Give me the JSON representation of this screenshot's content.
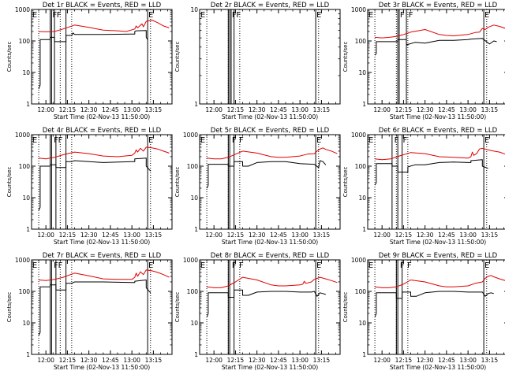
{
  "colors": {
    "events": "#000000",
    "lld": "#e00000",
    "axes": "#000000",
    "background": "#ffffff"
  },
  "ylabel": "Counts/sec",
  "xlabel": "Start Time (02-Nov-13 11:50:00)",
  "x_tick_labels": [
    "12:00",
    "12:15",
    "12:30",
    "12:45",
    "13:00",
    "13:15"
  ],
  "y_tick_labels": [
    "1",
    "10",
    "100",
    "1000"
  ],
  "chart_data": [
    {
      "type": "line",
      "title": "Det 1r  BLACK = Events, RED = LLD",
      "x_unit": "minutes after 11:50",
      "xlim": [
        0,
        98
      ],
      "ylim": [
        1,
        1000
      ],
      "y_scale": "log",
      "dotted_lines": [
        5,
        20,
        28,
        83
      ],
      "solid_lines": [
        13,
        14,
        16,
        24,
        81
      ],
      "markers": [
        {
          "x": 0.5,
          "label": "E"
        },
        {
          "x": 14.5,
          "label": "F"
        },
        {
          "x": 17.5,
          "label": "F"
        },
        {
          "x": 81.5,
          "label": "E"
        }
      ],
      "series": [
        {
          "role": "events",
          "x": [
            5,
            6,
            6.01,
            13,
            13.01,
            16,
            16.01,
            24,
            24.01,
            28,
            29,
            30,
            50,
            70,
            72,
            72.01,
            73,
            80,
            80.01,
            81
          ],
          "y": [
            3,
            4,
            110,
            110,
            130,
            130,
            95,
            95,
            150,
            150,
            180,
            160,
            160,
            165,
            165,
            200,
            210,
            215,
            130,
            110
          ]
        },
        {
          "role": "lld",
          "x": [
            5,
            10,
            16,
            22,
            30,
            40,
            50,
            60,
            66,
            72,
            73,
            74,
            77,
            78,
            80,
            84,
            88,
            92,
            96
          ],
          "y": [
            200,
            195,
            200,
            240,
            320,
            270,
            220,
            210,
            200,
            240,
            300,
            260,
            350,
            280,
            420,
            460,
            380,
            300,
            260
          ]
        }
      ]
    },
    {
      "type": "line",
      "title": "Det 2r  BLACK = Events, RED = LLD",
      "x_unit": "minutes after 11:50",
      "xlim": [
        0,
        98
      ],
      "ylim": [
        1,
        10
      ],
      "y_scale": "log",
      "dotted_lines": [
        5,
        20,
        28,
        83
      ],
      "solid_lines": [
        20,
        21,
        22,
        24,
        81
      ],
      "markers": [
        {
          "x": 0.5,
          "label": "E"
        },
        {
          "x": 22.5,
          "label": "F"
        },
        {
          "x": 25.5,
          "label": "F"
        },
        {
          "x": 81.5,
          "label": "E"
        }
      ],
      "series": [
        {
          "role": "events",
          "x": [],
          "y": []
        },
        {
          "role": "lld",
          "x": [],
          "y": []
        }
      ]
    },
    {
      "type": "line",
      "title": "Det 3r  BLACK = Events, RED = LLD",
      "x_unit": "minutes after 11:50",
      "xlim": [
        0,
        98
      ],
      "ylim": [
        1,
        1000
      ],
      "y_scale": "log",
      "dotted_lines": [
        5,
        20,
        28,
        83
      ],
      "solid_lines": [
        21,
        22,
        27,
        81
      ],
      "markers": [
        {
          "x": 0.5,
          "label": "E"
        },
        {
          "x": 22.5,
          "label": "F"
        },
        {
          "x": 28.5,
          "label": "F"
        },
        {
          "x": 81.5,
          "label": "E"
        }
      ],
      "series": [
        {
          "role": "events",
          "x": [
            5,
            6,
            6.01,
            21,
            21.01,
            27,
            27.01,
            33,
            40,
            50,
            60,
            70,
            72,
            80,
            85,
            88,
            90
          ],
          "y": [
            35,
            40,
            95,
            95,
            110,
            110,
            75,
            90,
            85,
            105,
            105,
            110,
            115,
            120,
            80,
            100,
            95
          ]
        },
        {
          "role": "lld",
          "x": [
            5,
            10,
            15,
            20,
            25,
            30,
            40,
            50,
            55,
            60,
            70,
            75,
            78,
            80,
            82,
            84,
            88,
            92,
            96
          ],
          "y": [
            130,
            125,
            130,
            140,
            160,
            190,
            230,
            160,
            150,
            145,
            160,
            185,
            190,
            250,
            230,
            270,
            320,
            290,
            250
          ]
        }
      ]
    },
    {
      "type": "line",
      "title": "Det 4r  BLACK = Events, RED = LLD",
      "x_unit": "minutes after 11:50",
      "xlim": [
        0,
        98
      ],
      "ylim": [
        1,
        1000
      ],
      "y_scale": "log",
      "dotted_lines": [
        5,
        20,
        28,
        83
      ],
      "solid_lines": [
        13,
        14,
        17,
        24,
        81
      ],
      "markers": [
        {
          "x": 0.5,
          "label": "E"
        },
        {
          "x": 15.5,
          "label": "F"
        },
        {
          "x": 18.5,
          "label": "F"
        },
        {
          "x": 81.5,
          "label": "E"
        }
      ],
      "series": [
        {
          "role": "events",
          "x": [
            5,
            6,
            6.01,
            13,
            13.01,
            17,
            17.01,
            24,
            24.01,
            28,
            30,
            50,
            70,
            72,
            72.01,
            80,
            80.01,
            83
          ],
          "y": [
            4,
            5,
            100,
            100,
            110,
            110,
            90,
            90,
            140,
            140,
            150,
            130,
            140,
            140,
            170,
            180,
            100,
            70
          ]
        },
        {
          "role": "lld",
          "x": [
            5,
            10,
            16,
            22,
            30,
            40,
            50,
            60,
            70,
            72,
            73,
            74,
            76,
            78,
            80,
            84,
            88,
            92,
            96
          ],
          "y": [
            180,
            170,
            190,
            230,
            280,
            250,
            210,
            200,
            220,
            260,
            330,
            280,
            370,
            300,
            400,
            380,
            350,
            300,
            260
          ]
        }
      ]
    },
    {
      "type": "line",
      "title": "Det 5r  BLACK = Events, RED = LLD",
      "x_unit": "minutes after 11:50",
      "xlim": [
        0,
        98
      ],
      "ylim": [
        1,
        1000
      ],
      "y_scale": "log",
      "dotted_lines": [
        5,
        20,
        28,
        83
      ],
      "solid_lines": [
        20,
        21,
        24,
        81
      ],
      "markers": [
        {
          "x": 0.5,
          "label": "E"
        },
        {
          "x": 22.5,
          "label": "F"
        },
        {
          "x": 27.5,
          "label": "F"
        },
        {
          "x": 81.5,
          "label": "E"
        }
      ],
      "series": [
        {
          "role": "events",
          "x": [
            5,
            6,
            6.01,
            20,
            20.01,
            24,
            24.01,
            30,
            30.01,
            34,
            40,
            50,
            60,
            70,
            80,
            83,
            84,
            86,
            88
          ],
          "y": [
            20,
            25,
            115,
            115,
            100,
            100,
            140,
            140,
            100,
            100,
            130,
            140,
            140,
            120,
            115,
            90,
            150,
            140,
            110
          ]
        },
        {
          "role": "lld",
          "x": [
            5,
            10,
            15,
            20,
            25,
            30,
            40,
            50,
            55,
            60,
            70,
            75,
            80,
            82,
            84,
            86,
            88,
            92,
            96
          ],
          "y": [
            180,
            170,
            170,
            190,
            240,
            300,
            260,
            200,
            190,
            190,
            210,
            240,
            250,
            300,
            350,
            380,
            340,
            300,
            250
          ]
        }
      ]
    },
    {
      "type": "line",
      "title": "Det 6r  BLACK = Events, RED = LLD",
      "x_unit": "minutes after 11:50",
      "xlim": [
        0,
        98
      ],
      "ylim": [
        1,
        1000
      ],
      "y_scale": "log",
      "dotted_lines": [
        5,
        20,
        28,
        83
      ],
      "solid_lines": [
        17,
        21,
        24,
        81
      ],
      "markers": [
        {
          "x": 0.5,
          "label": "E"
        },
        {
          "x": 18.5,
          "label": "F"
        },
        {
          "x": 24.5,
          "label": "F"
        },
        {
          "x": 81.5,
          "label": "E"
        }
      ],
      "series": [
        {
          "role": "events",
          "x": [
            5,
            6,
            6.01,
            17,
            17.01,
            21,
            21.01,
            28,
            28.01,
            33,
            40,
            50,
            60,
            70,
            72,
            72.01,
            80,
            80.01,
            84
          ],
          "y": [
            25,
            30,
            120,
            120,
            100,
            100,
            65,
            65,
            95,
            110,
            110,
            130,
            135,
            130,
            130,
            150,
            160,
            100,
            85
          ]
        },
        {
          "role": "lld",
          "x": [
            5,
            10,
            16,
            22,
            30,
            40,
            50,
            60,
            70,
            72,
            73,
            74,
            76,
            78,
            80,
            84,
            88,
            92,
            96
          ],
          "y": [
            170,
            160,
            170,
            210,
            270,
            250,
            200,
            190,
            180,
            200,
            280,
            220,
            250,
            350,
            370,
            330,
            300,
            280,
            240
          ]
        }
      ]
    },
    {
      "type": "line",
      "title": "Det 7r  BLACK = Events, RED = LLD",
      "x_unit": "minutes after 11:50",
      "xlim": [
        0,
        98
      ],
      "ylim": [
        1,
        1000
      ],
      "y_scale": "log",
      "dotted_lines": [
        5,
        20,
        28,
        83
      ],
      "solid_lines": [
        13,
        14,
        17,
        24,
        81
      ],
      "markers": [
        {
          "x": 0.5,
          "label": "E"
        },
        {
          "x": 15.5,
          "label": "F"
        },
        {
          "x": 18.5,
          "label": "F"
        },
        {
          "x": 81.5,
          "label": "E"
        }
      ],
      "series": [
        {
          "role": "events",
          "x": [
            5,
            6,
            6.01,
            13,
            13.01,
            17,
            17.01,
            24,
            24.01,
            28,
            30,
            50,
            70,
            72,
            72.01,
            80,
            80.01,
            83
          ],
          "y": [
            4,
            5,
            140,
            140,
            160,
            160,
            110,
            110,
            180,
            180,
            200,
            200,
            190,
            190,
            210,
            230,
            130,
            90
          ]
        },
        {
          "role": "lld",
          "x": [
            5,
            10,
            16,
            22,
            30,
            40,
            50,
            60,
            70,
            72,
            73,
            74,
            76,
            78,
            80,
            84,
            88,
            92,
            96
          ],
          "y": [
            230,
            220,
            240,
            280,
            380,
            310,
            250,
            240,
            240,
            280,
            380,
            300,
            420,
            340,
            480,
            450,
            400,
            340,
            280
          ]
        }
      ]
    },
    {
      "type": "line",
      "title": "Det 8r  BLACK = Events, RED = LLD",
      "x_unit": "minutes after 11:50",
      "xlim": [
        0,
        98
      ],
      "ylim": [
        1,
        1000
      ],
      "y_scale": "log",
      "dotted_lines": [
        5,
        20,
        28,
        83
      ],
      "solid_lines": [
        20,
        21,
        24,
        81
      ],
      "markers": [
        {
          "x": 0.5,
          "label": "E"
        },
        {
          "x": 22.5,
          "label": "F"
        },
        {
          "x": 27.5,
          "label": "F"
        },
        {
          "x": 81.5,
          "label": "E"
        }
      ],
      "series": [
        {
          "role": "events",
          "x": [
            5,
            6,
            6.01,
            20,
            20.01,
            24,
            24.01,
            30,
            30.01,
            34,
            40,
            50,
            60,
            70,
            78,
            80,
            82,
            84,
            86,
            88
          ],
          "y": [
            15,
            20,
            90,
            90,
            65,
            65,
            110,
            110,
            75,
            75,
            95,
            100,
            100,
            95,
            95,
            100,
            70,
            90,
            85,
            80
          ]
        },
        {
          "role": "lld",
          "x": [
            5,
            10,
            15,
            20,
            25,
            30,
            40,
            50,
            55,
            60,
            70,
            72,
            73,
            74,
            78,
            80,
            84,
            88,
            92,
            96
          ],
          "y": [
            140,
            130,
            130,
            150,
            200,
            280,
            230,
            160,
            150,
            150,
            160,
            170,
            210,
            180,
            200,
            240,
            280,
            250,
            220,
            190
          ]
        }
      ]
    },
    {
      "type": "line",
      "title": "Det 9r  BLACK = Events, RED = LLD",
      "x_unit": "minutes after 11:50",
      "xlim": [
        0,
        98
      ],
      "ylim": [
        1,
        1000
      ],
      "y_scale": "log",
      "dotted_lines": [
        5,
        20,
        28,
        83
      ],
      "solid_lines": [
        20,
        21,
        24,
        81
      ],
      "markers": [
        {
          "x": 0.5,
          "label": "E"
        },
        {
          "x": 22.5,
          "label": "F"
        },
        {
          "x": 27.5,
          "label": "F"
        },
        {
          "x": 81.5,
          "label": "E"
        }
      ],
      "series": [
        {
          "role": "events",
          "x": [
            5,
            6,
            6.01,
            20,
            20.01,
            24,
            24.01,
            30,
            30.01,
            34,
            40,
            50,
            60,
            70,
            80,
            82,
            84,
            86,
            88
          ],
          "y": [
            15,
            20,
            90,
            90,
            60,
            60,
            95,
            95,
            70,
            70,
            90,
            100,
            100,
            95,
            95,
            70,
            85,
            90,
            85
          ]
        },
        {
          "role": "lld",
          "x": [
            5,
            10,
            15,
            20,
            25,
            30,
            40,
            50,
            55,
            60,
            70,
            75,
            80,
            82,
            84,
            86,
            88,
            92,
            96
          ],
          "y": [
            140,
            130,
            130,
            140,
            170,
            230,
            200,
            150,
            140,
            140,
            150,
            180,
            200,
            260,
            300,
            320,
            290,
            250,
            220
          ]
        }
      ]
    }
  ]
}
